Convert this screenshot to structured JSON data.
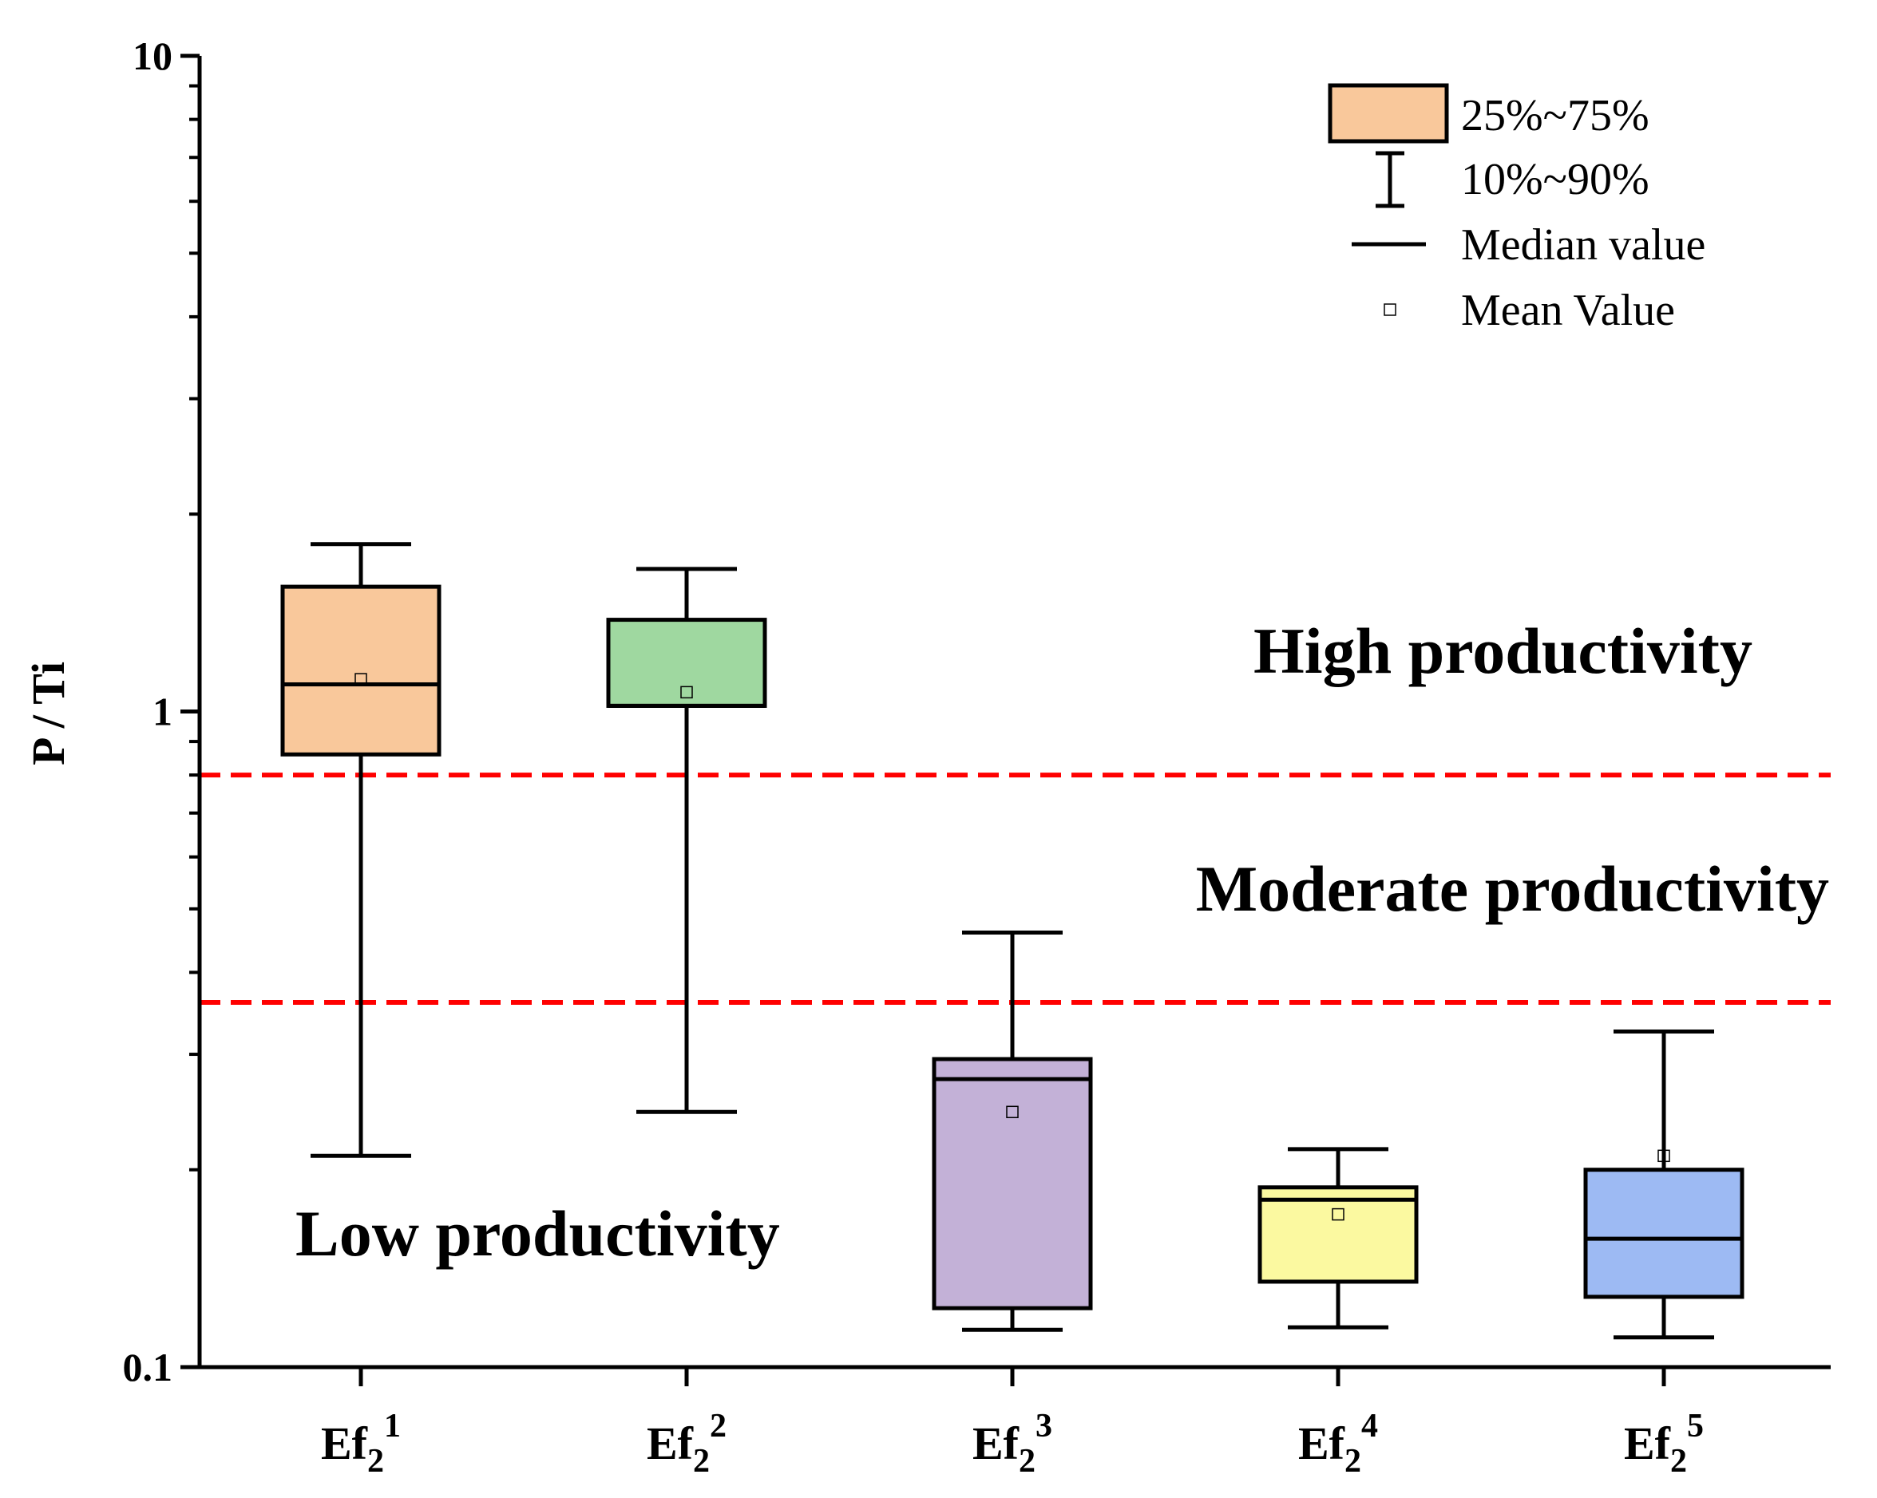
{
  "chart_data": {
    "type": "boxplot",
    "title": "",
    "xlabel": "",
    "ylabel": "P / Ti",
    "yscale": "log",
    "ylim": [
      0.1,
      10
    ],
    "yticks": [
      {
        "value": 10,
        "label": "10"
      },
      {
        "value": 1,
        "label": "1"
      },
      {
        "value": 0.1,
        "label": "0.1"
      }
    ],
    "categories": [
      {
        "base": "Ef",
        "sub": "2",
        "sup": "1"
      },
      {
        "base": "Ef",
        "sub": "2",
        "sup": "2"
      },
      {
        "base": "Ef",
        "sub": "2",
        "sup": "3"
      },
      {
        "base": "Ef",
        "sub": "2",
        "sup": "4"
      },
      {
        "base": "Ef",
        "sub": "2",
        "sup": "5"
      }
    ],
    "boxes": [
      {
        "p10": 0.21,
        "q1": 0.86,
        "median": 1.1,
        "q3": 1.55,
        "p90": 1.8,
        "mean": 1.12,
        "color": "#f9c89b"
      },
      {
        "p10": 0.245,
        "q1": 1.02,
        "median": 1.02,
        "q3": 1.38,
        "p90": 1.65,
        "mean": 1.07,
        "color": "#9fd8a0"
      },
      {
        "p10": 0.114,
        "q1": 0.123,
        "median": 0.275,
        "q3": 0.295,
        "p90": 0.46,
        "mean": 0.245,
        "color": "#c3b1d7"
      },
      {
        "p10": 0.115,
        "q1": 0.135,
        "median": 0.18,
        "q3": 0.188,
        "p90": 0.215,
        "mean": 0.171,
        "color": "#fbf9a0"
      },
      {
        "p10": 0.111,
        "q1": 0.128,
        "median": 0.157,
        "q3": 0.2,
        "p90": 0.325,
        "mean": 0.21,
        "color": "#9dbaf3"
      }
    ],
    "thresholds": [
      {
        "value": 0.8,
        "color": "#ff0000",
        "style": "dashed"
      },
      {
        "value": 0.36,
        "color": "#ff0000",
        "style": "dashed"
      }
    ],
    "region_labels": [
      {
        "text": "High productivity",
        "y": 1.4,
        "anchor": "right"
      },
      {
        "text": "Moderate productivity",
        "y": 0.59,
        "anchor": "right"
      },
      {
        "text": "Low productivity",
        "y": 0.151,
        "anchor": "left"
      }
    ],
    "legend": {
      "position": "top-right",
      "items": [
        {
          "kind": "box",
          "label": "25%~75%",
          "color": "#f9c89b"
        },
        {
          "kind": "whisker",
          "label": "10%~90%"
        },
        {
          "kind": "median",
          "label": "Median value"
        },
        {
          "kind": "mean",
          "label": "Mean Value"
        }
      ]
    }
  }
}
